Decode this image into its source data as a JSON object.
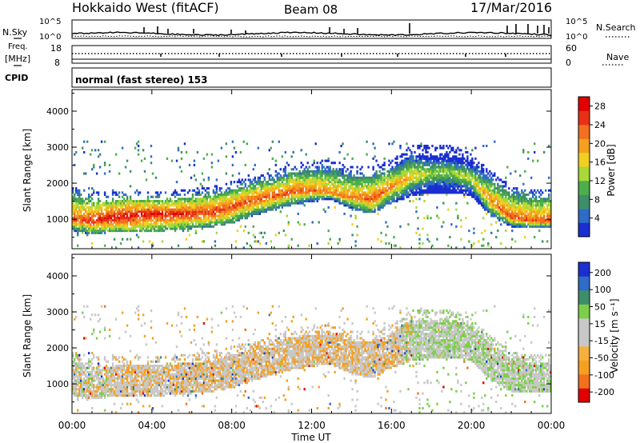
{
  "header": {
    "station": "Hokkaido West (fitACF)",
    "beam": "Beam 08",
    "date": "17/Mar/2016"
  },
  "noise_panel": {
    "left_label": "N.Sky",
    "right_label": "N.Search",
    "tick_top": "10^5",
    "tick_bottom": "10^0"
  },
  "freq_panel": {
    "left_label_1": "Freq.",
    "left_label_2": "[MHz]",
    "right_label": "Nave",
    "left_ticks": [
      "18",
      "8"
    ],
    "right_ticks": [
      "60",
      "0"
    ]
  },
  "cpid_panel": {
    "label": "CPID",
    "mode": "normal (fast stereo) 153"
  },
  "x_axis": {
    "label": "Time UT",
    "ticks": [
      "00:00",
      "04:00",
      "08:00",
      "12:00",
      "16:00",
      "20:00",
      "00:00"
    ]
  },
  "colors": {
    "power": [
      "#1a2fd0",
      "#2e6cc8",
      "#3f8e6a",
      "#4cae4c",
      "#a8d83a",
      "#f0d020",
      "#f5a020",
      "#f07020",
      "#e83018",
      "#e00000"
    ],
    "velocity": [
      "#e00000",
      "#f07020",
      "#f5a020",
      "#c8c8c8",
      "#c8c8c8",
      "#7ccf48",
      "#3f8e6a",
      "#2e6cc8",
      "#1a2fd0"
    ]
  },
  "chart_data": [
    {
      "type": "heatmap",
      "title": "Power",
      "ylabel": "Slant Range [km]",
      "xlabel": "",
      "xlim": [
        0,
        24
      ],
      "ylim": [
        180,
        4600
      ],
      "y_ticks": [
        "1000",
        "2000",
        "3000",
        "4000"
      ],
      "colorbar": {
        "label": "Power [dB]",
        "ticks": [
          "4",
          "8",
          "12",
          "16",
          "20",
          "24",
          "28"
        ],
        "range": [
          0,
          30
        ]
      },
      "backscatter_band": {
        "t_hours": [
          0,
          1,
          2,
          3,
          4,
          5,
          6,
          7,
          8,
          9,
          10,
          11,
          12,
          13,
          14,
          15,
          16,
          17,
          18,
          19,
          20,
          21,
          22,
          23,
          24
        ],
        "lower_edge_km": [
          750,
          650,
          700,
          700,
          720,
          750,
          800,
          850,
          950,
          1150,
          1300,
          1450,
          1550,
          1600,
          1350,
          1200,
          1500,
          1700,
          1800,
          1800,
          1700,
          1150,
          850,
          800,
          800
        ],
        "peak_km": [
          1000,
          950,
          1050,
          1100,
          1150,
          1150,
          1150,
          1200,
          1350,
          1500,
          1650,
          1750,
          1800,
          1700,
          1600,
          1550,
          1900,
          2200,
          2300,
          2300,
          2100,
          1500,
          1050,
          950,
          950
        ],
        "upper_edge_km": [
          1650,
          1500,
          1500,
          1550,
          1550,
          1550,
          1600,
          1650,
          1800,
          2000,
          2100,
          2300,
          2350,
          2400,
          2200,
          2200,
          2400,
          2800,
          2800,
          2800,
          2600,
          2100,
          1700,
          1600,
          1600
        ],
        "peak_power_db": [
          24,
          26,
          28,
          28,
          27,
          27,
          26,
          26,
          25,
          24,
          24,
          24,
          23,
          22,
          22,
          24,
          22,
          18,
          14,
          14,
          16,
          22,
          24,
          24,
          24
        ]
      }
    },
    {
      "type": "heatmap",
      "title": "Velocity",
      "ylabel": "Slant Range [km]",
      "xlabel": "Time UT",
      "xlim": [
        0,
        24
      ],
      "ylim": [
        180,
        4600
      ],
      "y_ticks": [
        "1000",
        "2000",
        "3000",
        "4000"
      ],
      "colorbar": {
        "label": "Velocity [m s⁻¹]",
        "ticks": [
          "200",
          "100",
          "50",
          "15",
          "-15",
          "-50",
          "-100",
          "-200"
        ],
        "range": [
          -250,
          250
        ]
      }
    }
  ]
}
